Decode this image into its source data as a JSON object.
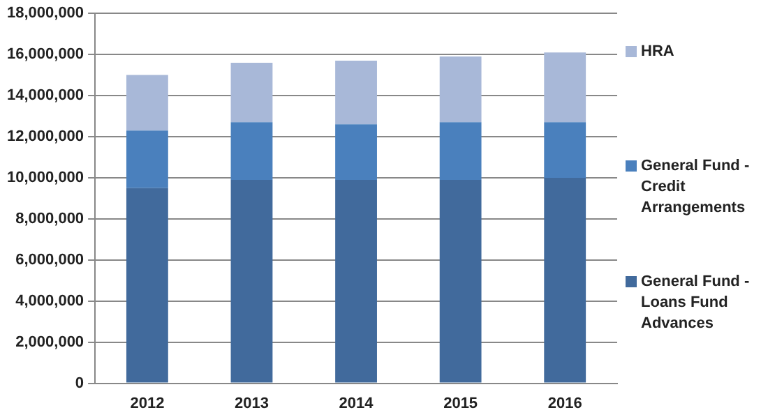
{
  "chart_data": {
    "type": "bar",
    "stacked": true,
    "categories": [
      "2012",
      "2013",
      "2014",
      "2015",
      "2016"
    ],
    "series": [
      {
        "name": "General Fund - Loans Fund Advances",
        "color": "#416a9c",
        "values": [
          9500000,
          9900000,
          9900000,
          9900000,
          10000000
        ]
      },
      {
        "name": "General Fund - Credit Arrangements",
        "color": "#4a80bd",
        "values": [
          2800000,
          2800000,
          2700000,
          2800000,
          2700000
        ]
      },
      {
        "name": "HRA",
        "color": "#a8b8d8",
        "values": [
          2700000,
          2900000,
          3100000,
          3200000,
          3400000
        ]
      }
    ],
    "ylim": [
      0,
      18000000
    ],
    "yticks": [
      0,
      {
        "value": 2000000,
        "label": "2,000,000"
      },
      {
        "value": 4000000,
        "label": "4,000,000"
      },
      {
        "value": 6000000,
        "label": "6,000,000"
      },
      {
        "value": 8000000,
        "label": "8,000,000"
      },
      {
        "value": 10000000,
        "label": "10,000,000"
      },
      {
        "value": 12000000,
        "label": "12,000,000"
      },
      {
        "value": 14000000,
        "label": "14,000,000"
      },
      {
        "value": 16000000,
        "label": "16,000,000"
      },
      {
        "value": 18000000,
        "label": "18,000,000"
      }
    ],
    "grid": "y",
    "legend": "right"
  }
}
